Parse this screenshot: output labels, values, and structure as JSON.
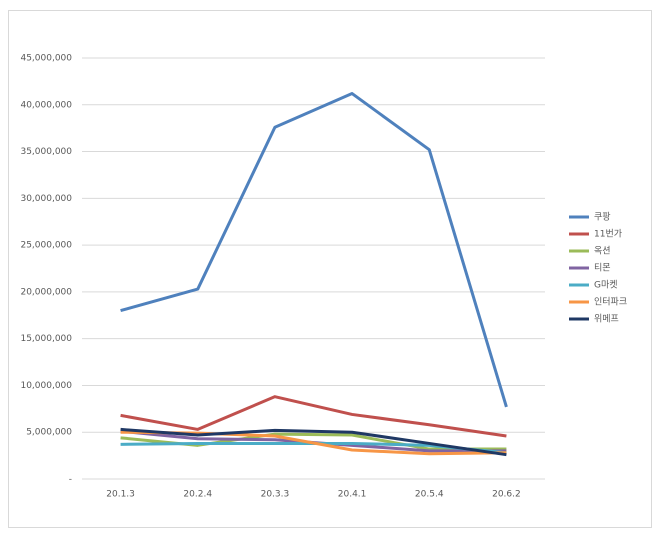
{
  "chart_data": {
    "type": "line",
    "categories": [
      "20.1.3",
      "20.2.4",
      "20.3.3",
      "20.4.1",
      "20.5.4",
      "20.6.2"
    ],
    "series": [
      {
        "name": "쿠팡",
        "color": "#4f81bd",
        "values": [
          18000000,
          20300000,
          37600000,
          41200000,
          35200000,
          7700000
        ]
      },
      {
        "name": "11번가",
        "color": "#c0504d",
        "values": [
          6800000,
          5300000,
          8800000,
          6900000,
          5800000,
          4600000
        ]
      },
      {
        "name": "옥션",
        "color": "#9bbb59",
        "values": [
          4400000,
          3600000,
          4800000,
          4700000,
          3200000,
          3200000
        ]
      },
      {
        "name": "티몬",
        "color": "#8064a2",
        "values": [
          5100000,
          4300000,
          4200000,
          3600000,
          3000000,
          3000000
        ]
      },
      {
        "name": "G마켓",
        "color": "#4bacc6",
        "values": [
          3700000,
          3800000,
          3800000,
          3800000,
          3600000,
          2800000
        ]
      },
      {
        "name": "인터파크",
        "color": "#f79646",
        "values": [
          5000000,
          4900000,
          4600000,
          3100000,
          2700000,
          2800000
        ]
      },
      {
        "name": "위메프",
        "color": "#1f3864",
        "values": [
          5300000,
          4700000,
          5200000,
          5000000,
          3800000,
          2600000
        ]
      }
    ],
    "ylim": [
      0,
      45000000
    ],
    "yticks": [
      {
        "value": 0,
        "label": "-"
      },
      {
        "value": 5000000,
        "label": "5,000,000"
      },
      {
        "value": 10000000,
        "label": "10,000,000"
      },
      {
        "value": 15000000,
        "label": "15,000,000"
      },
      {
        "value": 20000000,
        "label": "20,000,000"
      },
      {
        "value": 25000000,
        "label": "25,000,000"
      },
      {
        "value": 30000000,
        "label": "30,000,000"
      },
      {
        "value": 35000000,
        "label": "35,000,000"
      },
      {
        "value": 40000000,
        "label": "40,000,000"
      },
      {
        "value": 45000000,
        "label": "45,000,000"
      }
    ],
    "grid": true,
    "legend": "right"
  }
}
